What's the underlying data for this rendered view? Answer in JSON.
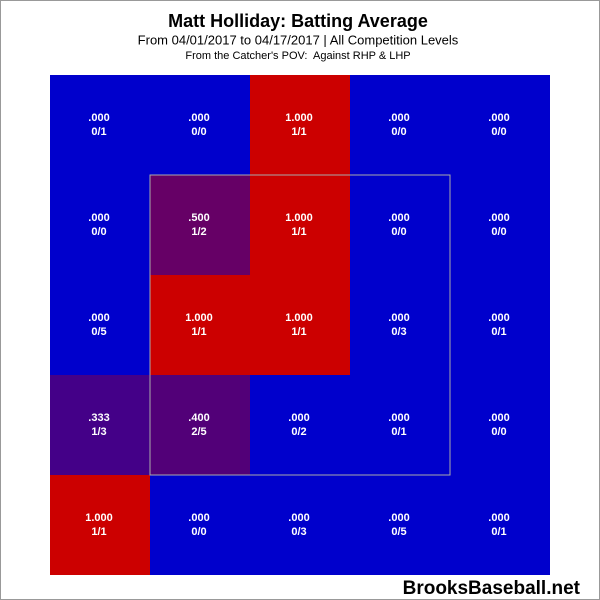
{
  "chart_data": {
    "type": "heatmap",
    "title": "Matt Holliday: Batting Average",
    "subtitle": "From 04/01/2017 to 04/17/2017 | All Competition Levels",
    "note": "From the Catcher's POV:  Against RHP & LHP",
    "watermark": "BrooksBaseball.net",
    "values": [
      [
        0,
        0,
        1,
        0,
        0
      ],
      [
        0,
        0.5,
        1,
        0,
        0
      ],
      [
        0,
        1,
        1,
        0,
        0
      ],
      [
        0.333,
        0.4,
        0,
        0,
        0
      ],
      [
        1,
        0,
        0,
        0,
        0
      ]
    ],
    "value_labels": [
      [
        ".000",
        ".000",
        "1.000",
        ".000",
        ".000"
      ],
      [
        ".000",
        ".500",
        "1.000",
        ".000",
        ".000"
      ],
      [
        ".000",
        "1.000",
        "1.000",
        ".000",
        ".000"
      ],
      [
        ".333",
        ".400",
        ".000",
        ".000",
        ".000"
      ],
      [
        "1.000",
        ".000",
        ".000",
        ".000",
        ".000"
      ]
    ],
    "counts": [
      [
        "0/1",
        "0/0",
        "1/1",
        "0/0",
        "0/0"
      ],
      [
        "0/0",
        "1/2",
        "1/1",
        "0/0",
        "0/0"
      ],
      [
        "0/5",
        "1/1",
        "1/1",
        "0/3",
        "0/1"
      ],
      [
        "1/3",
        "2/5",
        "0/2",
        "0/1",
        "0/0"
      ],
      [
        "1/1",
        "0/0",
        "0/3",
        "0/5",
        "0/1"
      ]
    ],
    "colors": [
      [
        "#0000cc",
        "#0000cc",
        "#cc0000",
        "#0000cc",
        "#0000cc"
      ],
      [
        "#0000cc",
        "#660066",
        "#cc0000",
        "#0000cc",
        "#0000cc"
      ],
      [
        "#0000cc",
        "#cc0000",
        "#cc0000",
        "#0000cc",
        "#0000cc"
      ],
      [
        "#440088",
        "#520078",
        "#0000cc",
        "#0000cc",
        "#0000cc"
      ],
      [
        "#cc0000",
        "#0000cc",
        "#0000cc",
        "#0000cc",
        "#0000cc"
      ]
    ]
  }
}
